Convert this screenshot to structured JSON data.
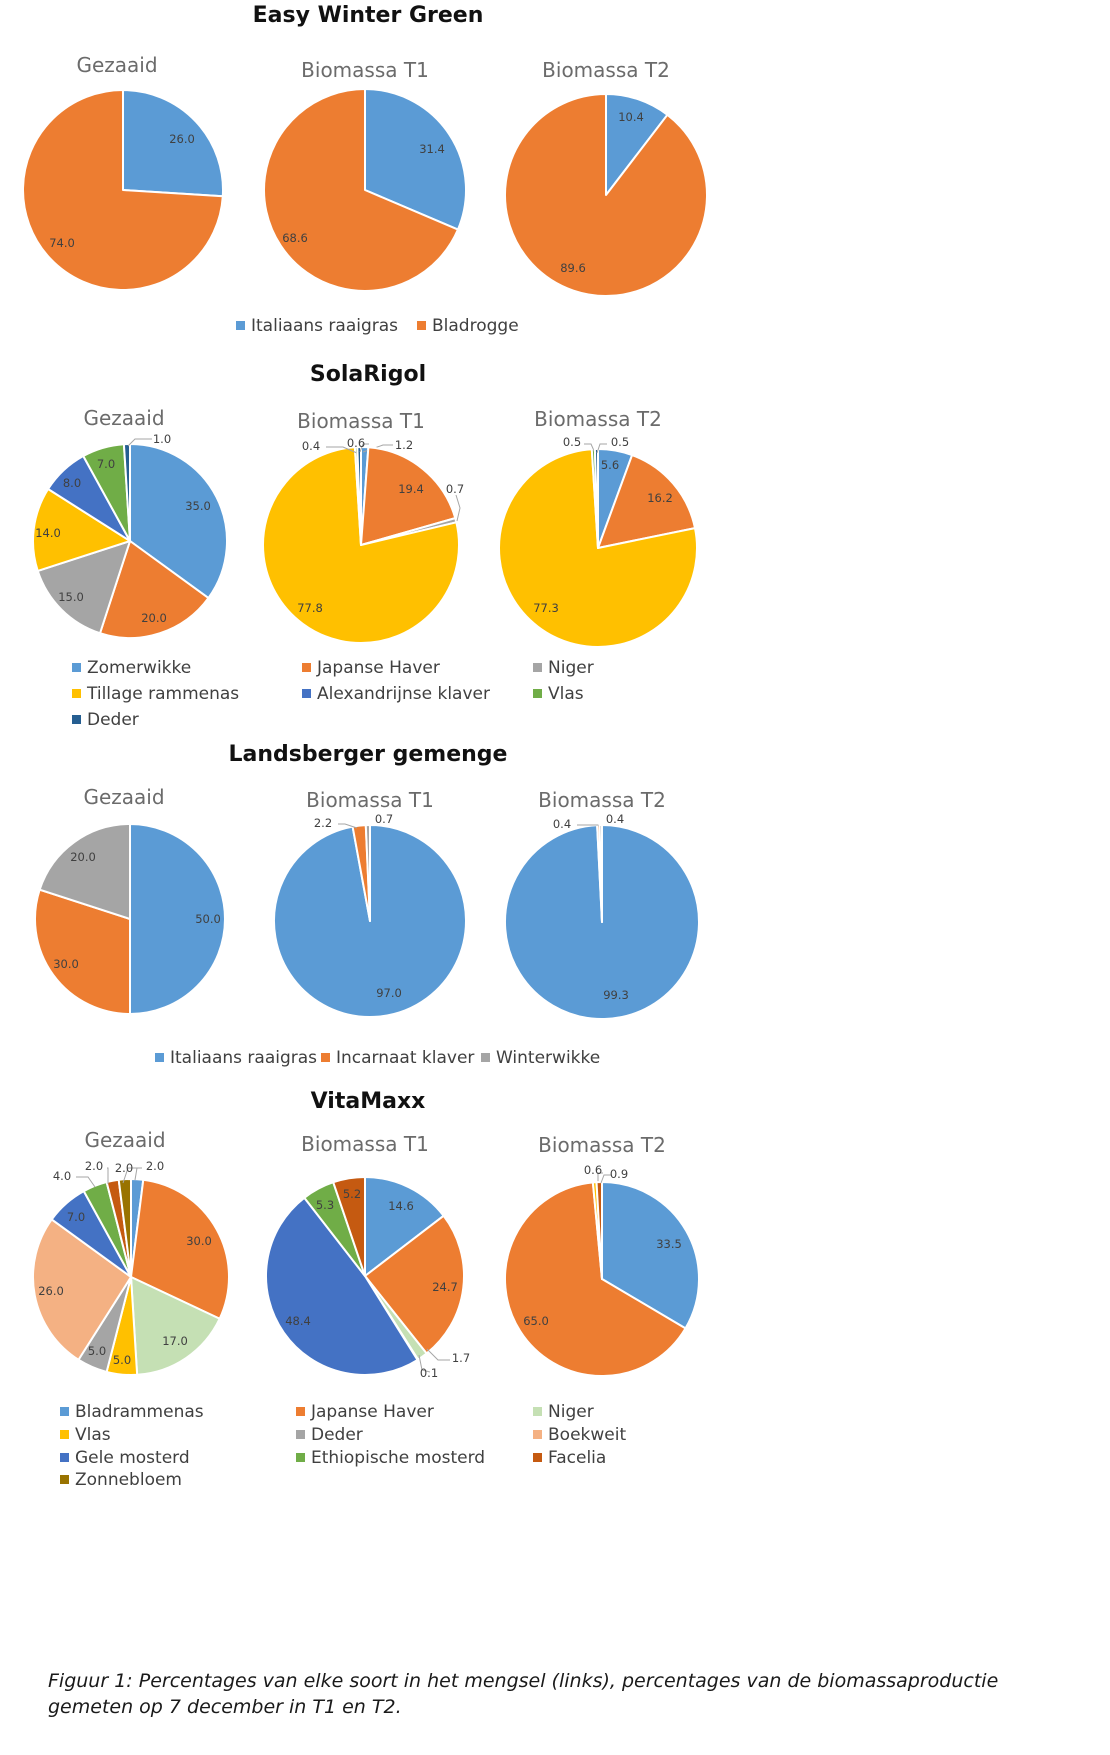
{
  "colors": {
    "Italiaans raaigras": "#5B9BD5",
    "Bladrogge": "#ED7D31",
    "Zomerwikke": "#5B9BD5",
    "Japanse Haver": "#ED7D31",
    "Niger_solarigol": "#A5A5A5",
    "Tillage rammenas": "#FFC000",
    "Alexandrijnse klaver": "#4472C4",
    "Vlas_solarigol": "#70AD47",
    "Deder_solarigol": "#255E91",
    "Incarnaat klaver": "#ED7D31",
    "Winterwikke": "#A5A5A5",
    "Bladrammenas": "#5B9BD5",
    "Niger": "#C5E0B4",
    "Vlas": "#FFC000",
    "Deder": "#A5A5A5",
    "Boekweit": "#F4B183",
    "Gele mosterd": "#4472C4",
    "Ethiopische mosterd": "#70AD47",
    "Facelia": "#C55A11",
    "Zonnebloem": "#997300"
  },
  "chart_data": [
    {
      "type": "pie",
      "group": "Easy Winter Green",
      "legend": [
        "Italiaans raaigras",
        "Bladrogge"
      ],
      "charts": [
        {
          "title": "Gezaaid",
          "slices": [
            {
              "label": "Italiaans raaigras",
              "value": 26.0
            },
            {
              "label": "Bladrogge",
              "value": 74.0
            }
          ]
        },
        {
          "title": "Biomassa T1",
          "slices": [
            {
              "label": "Italiaans raaigras",
              "value": 31.4
            },
            {
              "label": "Bladrogge",
              "value": 68.6
            }
          ]
        },
        {
          "title": "Biomassa T2",
          "slices": [
            {
              "label": "Italiaans raaigras",
              "value": 10.4
            },
            {
              "label": "Bladrogge",
              "value": 89.6
            }
          ]
        }
      ]
    },
    {
      "type": "pie",
      "group": "SolaRigol",
      "legend": [
        "Zomerwikke",
        "Japanse Haver",
        "Niger",
        "Tillage rammenas",
        "Alexandrijnse klaver",
        "Vlas",
        "Deder"
      ],
      "charts": [
        {
          "title": "Gezaaid",
          "slices": [
            {
              "label": "Zomerwikke",
              "value": 35.0
            },
            {
              "label": "Japanse Haver",
              "value": 20.0
            },
            {
              "label": "Niger",
              "value": 15.0
            },
            {
              "label": "Tillage rammenas",
              "value": 14.0
            },
            {
              "label": "Alexandrijnse klaver",
              "value": 8.0
            },
            {
              "label": "Vlas",
              "value": 7.0
            },
            {
              "label": "Deder",
              "value": 1.0
            }
          ]
        },
        {
          "title": "Biomassa T1",
          "slices": [
            {
              "label": "Zomerwikke",
              "value": 1.2
            },
            {
              "label": "Japanse Haver",
              "value": 19.4
            },
            {
              "label": "Niger",
              "value": 0.7
            },
            {
              "label": "Tillage rammenas",
              "value": 77.8
            },
            {
              "label": "Alexandrijnse klaver",
              "value": 0.0
            },
            {
              "label": "Vlas",
              "value": 0.4
            },
            {
              "label": "Deder",
              "value": 0.6
            }
          ]
        },
        {
          "title": "Biomassa T2",
          "slices": [
            {
              "label": "Zomerwikke",
              "value": 5.6
            },
            {
              "label": "Japanse Haver",
              "value": 16.2
            },
            {
              "label": "Niger",
              "value": 0.0
            },
            {
              "label": "Tillage rammenas",
              "value": 77.3
            },
            {
              "label": "Alexandrijnse klaver",
              "value": 0.0
            },
            {
              "label": "Vlas",
              "value": 0.5
            },
            {
              "label": "Deder",
              "value": 0.5
            }
          ]
        }
      ]
    },
    {
      "type": "pie",
      "group": "Landsberger gemenge",
      "legend": [
        "Italiaans raaigras",
        "Incarnaat klaver",
        "Winterwikke"
      ],
      "charts": [
        {
          "title": "Gezaaid",
          "slices": [
            {
              "label": "Italiaans raaigras",
              "value": 50.0
            },
            {
              "label": "Incarnaat klaver",
              "value": 30.0
            },
            {
              "label": "Winterwikke",
              "value": 20.0
            }
          ]
        },
        {
          "title": "Biomassa T1",
          "slices": [
            {
              "label": "Italiaans raaigras",
              "value": 97.0
            },
            {
              "label": "Incarnaat klaver",
              "value": 2.2
            },
            {
              "label": "Winterwikke",
              "value": 0.7
            }
          ]
        },
        {
          "title": "Biomassa T2",
          "slices": [
            {
              "label": "Italiaans raaigras",
              "value": 99.3
            },
            {
              "label": "Incarnaat klaver",
              "value": 0.4
            },
            {
              "label": "Winterwikke",
              "value": 0.4
            }
          ]
        }
      ]
    },
    {
      "type": "pie",
      "group": "VitaMaxx",
      "legend": [
        "Bladrammenas",
        "Japanse Haver",
        "Niger",
        "Vlas",
        "Deder",
        "Boekweit",
        "Gele mosterd",
        "Ethiopische mosterd",
        "Facelia",
        "Zonnebloem"
      ],
      "charts": [
        {
          "title": "Gezaaid",
          "slices": [
            {
              "label": "Bladrammenas",
              "value": 2.0
            },
            {
              "label": "Japanse Haver",
              "value": 30.0
            },
            {
              "label": "Niger",
              "value": 17.0
            },
            {
              "label": "Vlas",
              "value": 5.0
            },
            {
              "label": "Deder",
              "value": 5.0
            },
            {
              "label": "Boekweit",
              "value": 26.0
            },
            {
              "label": "Gele mosterd",
              "value": 7.0
            },
            {
              "label": "Ethiopische mosterd",
              "value": 4.0
            },
            {
              "label": "Facelia",
              "value": 2.0
            },
            {
              "label": "Zonnebloem",
              "value": 2.0
            }
          ]
        },
        {
          "title": "Biomassa T1",
          "slices": [
            {
              "label": "Bladrammenas",
              "value": 14.6
            },
            {
              "label": "Japanse Haver",
              "value": 24.7
            },
            {
              "label": "Niger",
              "value": 1.7
            },
            {
              "label": "Vlas",
              "value": 0.1
            },
            {
              "label": "Gele mosterd",
              "value": 48.4
            },
            {
              "label": "Ethiopische mosterd",
              "value": 5.3
            },
            {
              "label": "Facelia",
              "value": 5.2
            }
          ]
        },
        {
          "title": "Biomassa T2",
          "slices": [
            {
              "label": "Bladrammenas",
              "value": 33.5
            },
            {
              "label": "Japanse Haver",
              "value": 65.0
            },
            {
              "label": "Vlas",
              "value": 0.6
            },
            {
              "label": "Facelia",
              "value": 0.9
            }
          ]
        }
      ]
    }
  ],
  "caption": "Figuur 1: Percentages van elke soort in het mengsel (links), percentages van de biomassaproductie gemeten op 7 december in T1 en T2."
}
